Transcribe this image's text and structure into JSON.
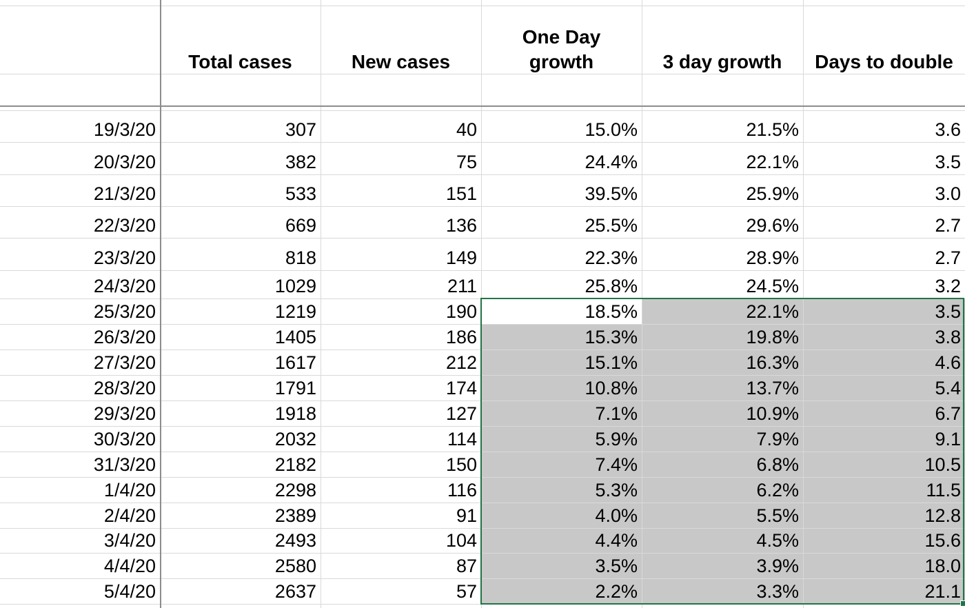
{
  "headers": [
    "",
    "Total cases",
    "New cases",
    "One Day\ngrowth",
    "3 day growth",
    "Days to double"
  ],
  "rows": [
    [
      "19/3/20",
      "307",
      "40",
      "15.0%",
      "21.5%",
      "3.6"
    ],
    [
      "20/3/20",
      "382",
      "75",
      "24.4%",
      "22.1%",
      "3.5"
    ],
    [
      "21/3/20",
      "533",
      "151",
      "39.5%",
      "25.9%",
      "3.0"
    ],
    [
      "22/3/20",
      "669",
      "136",
      "25.5%",
      "29.6%",
      "2.7"
    ],
    [
      "23/3/20",
      "818",
      "149",
      "22.3%",
      "28.9%",
      "2.7"
    ],
    [
      "24/3/20",
      "1029",
      "211",
      "25.8%",
      "24.5%",
      "3.2"
    ],
    [
      "25/3/20",
      "1219",
      "190",
      "18.5%",
      "22.1%",
      "3.5"
    ],
    [
      "26/3/20",
      "1405",
      "186",
      "15.3%",
      "19.8%",
      "3.8"
    ],
    [
      "27/3/20",
      "1617",
      "212",
      "15.1%",
      "16.3%",
      "4.6"
    ],
    [
      "28/3/20",
      "1791",
      "174",
      "10.8%",
      "13.7%",
      "5.4"
    ],
    [
      "29/3/20",
      "1918",
      "127",
      "7.1%",
      "10.9%",
      "6.7"
    ],
    [
      "30/3/20",
      "2032",
      "114",
      "5.9%",
      "7.9%",
      "9.1"
    ],
    [
      "31/3/20",
      "2182",
      "150",
      "7.4%",
      "6.8%",
      "10.5"
    ],
    [
      "1/4/20",
      "2298",
      "116",
      "5.3%",
      "6.2%",
      "11.5"
    ],
    [
      "2/4/20",
      "2389",
      "91",
      "4.0%",
      "5.5%",
      "12.8"
    ],
    [
      "3/4/20",
      "2493",
      "104",
      "4.4%",
      "4.5%",
      "15.6"
    ],
    [
      "4/4/20",
      "2580",
      "87",
      "3.5%",
      "3.9%",
      "18.0"
    ],
    [
      "5/4/20",
      "2637",
      "57",
      "2.2%",
      "3.3%",
      "21.1"
    ]
  ],
  "selection": {
    "range_label": "D7:F18",
    "active_cell": "D7",
    "highlight_color": "#c8c8c8",
    "border_color": "#217346"
  }
}
